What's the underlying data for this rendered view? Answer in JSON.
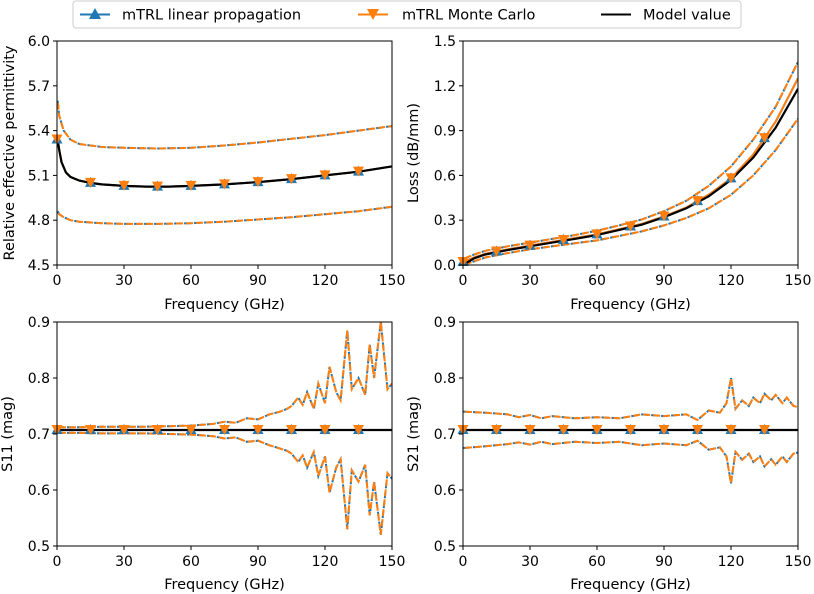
{
  "legend": {
    "position": "top-center",
    "entries": [
      {
        "name": "mTRL linear propagation",
        "color": "#1f77b4",
        "marker": "triangle-up"
      },
      {
        "name": "mTRL Monte Carlo",
        "color": "#ff7f0e",
        "marker": "triangle-down"
      },
      {
        "name": "Model value",
        "color": "#000000",
        "marker": "none"
      }
    ]
  },
  "chart_data": [
    {
      "type": "line",
      "id": "eps",
      "xlabel": "Frequency (GHz)",
      "ylabel": "Relative effective permittivity",
      "xlim": [
        0,
        150
      ],
      "ylim": [
        4.5,
        6.0
      ],
      "xticks": [
        "0",
        "30",
        "60",
        "90",
        "120",
        "150"
      ],
      "yticks": [
        "4.5",
        "4.8",
        "5.1",
        "5.4",
        "5.7",
        "6.0"
      ],
      "model": {
        "x": [
          0.3,
          1,
          2,
          4,
          6,
          10,
          15,
          20,
          30,
          40,
          50,
          60,
          75,
          90,
          105,
          120,
          135,
          150
        ],
        "y": [
          5.34,
          5.27,
          5.19,
          5.12,
          5.09,
          5.065,
          5.05,
          5.04,
          5.03,
          5.025,
          5.025,
          5.03,
          5.04,
          5.055,
          5.075,
          5.1,
          5.125,
          5.16
        ]
      },
      "mean": {
        "x": [
          0.3,
          1,
          2,
          4,
          6,
          10,
          15,
          20,
          30,
          40,
          50,
          60,
          75,
          90,
          105,
          120,
          135,
          150
        ],
        "y": [
          5.34,
          5.27,
          5.19,
          5.12,
          5.09,
          5.065,
          5.05,
          5.04,
          5.03,
          5.025,
          5.025,
          5.03,
          5.04,
          5.055,
          5.075,
          5.1,
          5.125,
          5.16
        ]
      },
      "upper": {
        "x": [
          0.3,
          1,
          3,
          6,
          10,
          20,
          30,
          45,
          60,
          75,
          90,
          105,
          120,
          135,
          150
        ],
        "y": [
          5.6,
          5.5,
          5.4,
          5.34,
          5.31,
          5.29,
          5.285,
          5.28,
          5.285,
          5.3,
          5.32,
          5.345,
          5.37,
          5.4,
          5.43
        ]
      },
      "lower": {
        "x": [
          0.3,
          1,
          3,
          6,
          10,
          20,
          30,
          45,
          60,
          75,
          90,
          105,
          120,
          135,
          150
        ],
        "y": [
          4.86,
          4.84,
          4.82,
          4.8,
          4.79,
          4.78,
          4.775,
          4.775,
          4.78,
          4.79,
          4.805,
          4.82,
          4.84,
          4.86,
          4.89
        ]
      },
      "markers_up_x": [
        0,
        15,
        30,
        45,
        60,
        75,
        90,
        105,
        120,
        135
      ],
      "markers_down_x": [
        0,
        15,
        30,
        45,
        60,
        75,
        90,
        105,
        120,
        135
      ]
    },
    {
      "type": "line",
      "id": "loss",
      "xlabel": "Frequency (GHz)",
      "ylabel": "Loss (dB/mm)",
      "xlim": [
        0,
        150
      ],
      "ylim": [
        0.0,
        1.5
      ],
      "xticks": [
        "0",
        "30",
        "60",
        "90",
        "120",
        "150"
      ],
      "yticks": [
        "0.0",
        "0.3",
        "0.6",
        "0.9",
        "1.2",
        "1.5"
      ],
      "model": {
        "x": [
          0,
          5,
          10,
          20,
          30,
          40,
          50,
          60,
          70,
          80,
          90,
          100,
          110,
          120,
          130,
          140,
          150
        ],
        "y": [
          0.0,
          0.045,
          0.07,
          0.1,
          0.125,
          0.15,
          0.175,
          0.2,
          0.235,
          0.27,
          0.32,
          0.38,
          0.46,
          0.57,
          0.72,
          0.92,
          1.18
        ]
      },
      "mean": {
        "x": [
          0,
          5,
          10,
          20,
          30,
          40,
          50,
          60,
          70,
          80,
          90,
          100,
          110,
          120,
          130,
          140,
          150
        ],
        "y": [
          0.02,
          0.05,
          0.075,
          0.105,
          0.13,
          0.155,
          0.18,
          0.205,
          0.24,
          0.275,
          0.325,
          0.385,
          0.47,
          0.58,
          0.74,
          0.96,
          1.25
        ]
      },
      "upper": {
        "x": [
          0,
          5,
          10,
          20,
          30,
          40,
          50,
          60,
          70,
          80,
          90,
          100,
          110,
          120,
          130,
          140,
          150
        ],
        "y": [
          0.04,
          0.07,
          0.095,
          0.125,
          0.15,
          0.175,
          0.2,
          0.23,
          0.265,
          0.305,
          0.36,
          0.43,
          0.53,
          0.66,
          0.84,
          1.06,
          1.36
        ]
      },
      "lower": {
        "x": [
          0,
          5,
          10,
          20,
          30,
          40,
          50,
          60,
          70,
          80,
          90,
          100,
          110,
          120,
          130,
          140,
          150
        ],
        "y": [
          0.0,
          0.025,
          0.05,
          0.08,
          0.105,
          0.125,
          0.145,
          0.165,
          0.195,
          0.225,
          0.265,
          0.315,
          0.38,
          0.47,
          0.6,
          0.77,
          0.98
        ]
      },
      "markers_up_x": [
        0,
        15,
        30,
        45,
        60,
        75,
        90,
        105,
        120,
        135
      ],
      "markers_down_x": [
        0,
        15,
        30,
        45,
        60,
        75,
        90,
        105,
        120,
        135
      ]
    },
    {
      "type": "line",
      "id": "s11",
      "xlabel": "Frequency (GHz)",
      "ylabel": "S11 (mag)",
      "xlim": [
        0,
        150
      ],
      "ylim": [
        0.5,
        0.9
      ],
      "xticks": [
        "0",
        "30",
        "60",
        "90",
        "120",
        "150"
      ],
      "yticks": [
        "0.5",
        "0.6",
        "0.7",
        "0.8",
        "0.9"
      ],
      "model": {
        "x": [
          0,
          150
        ],
        "y": [
          0.7071,
          0.7071
        ]
      },
      "mean": {
        "x": [
          0,
          150
        ],
        "y": [
          0.7071,
          0.7071
        ]
      },
      "upper": {
        "x": [
          0,
          10,
          20,
          30,
          40,
          50,
          60,
          70,
          75,
          80,
          85,
          90,
          95,
          100,
          103,
          105,
          108,
          110,
          112,
          115,
          117,
          120,
          122,
          125,
          127,
          130,
          132,
          135,
          138,
          140,
          142,
          145,
          148,
          150
        ],
        "y": [
          0.712,
          0.712,
          0.713,
          0.713,
          0.713,
          0.714,
          0.715,
          0.718,
          0.722,
          0.72,
          0.728,
          0.726,
          0.735,
          0.74,
          0.745,
          0.75,
          0.765,
          0.752,
          0.775,
          0.745,
          0.79,
          0.755,
          0.82,
          0.775,
          0.76,
          0.885,
          0.78,
          0.8,
          0.77,
          0.86,
          0.8,
          0.9,
          0.78,
          0.79
        ]
      },
      "lower": {
        "x": [
          0,
          10,
          20,
          30,
          40,
          50,
          60,
          70,
          75,
          80,
          85,
          90,
          95,
          100,
          103,
          105,
          108,
          110,
          112,
          115,
          117,
          120,
          122,
          125,
          127,
          130,
          132,
          135,
          138,
          140,
          142,
          145,
          148,
          150
        ],
        "y": [
          0.702,
          0.702,
          0.701,
          0.701,
          0.701,
          0.7,
          0.699,
          0.696,
          0.692,
          0.694,
          0.686,
          0.688,
          0.68,
          0.674,
          0.67,
          0.665,
          0.65,
          0.662,
          0.64,
          0.668,
          0.625,
          0.66,
          0.595,
          0.64,
          0.655,
          0.53,
          0.635,
          0.615,
          0.645,
          0.555,
          0.615,
          0.52,
          0.63,
          0.62
        ]
      },
      "markers_up_x": [
        0,
        15,
        30,
        45,
        60,
        75,
        90,
        105,
        120,
        135
      ],
      "markers_down_x": [
        0,
        15,
        30,
        45,
        60,
        75,
        90,
        105,
        120,
        135
      ]
    },
    {
      "type": "line",
      "id": "s21",
      "xlabel": "Frequency (GHz)",
      "ylabel": "S21 (mag)",
      "xlim": [
        0,
        150
      ],
      "ylim": [
        0.5,
        0.9
      ],
      "xticks": [
        "0",
        "30",
        "60",
        "90",
        "120",
        "150"
      ],
      "yticks": [
        "0.5",
        "0.6",
        "0.7",
        "0.8",
        "0.9"
      ],
      "model": {
        "x": [
          0,
          150
        ],
        "y": [
          0.7071,
          0.7071
        ]
      },
      "mean": {
        "x": [
          0,
          150
        ],
        "y": [
          0.7071,
          0.7071
        ]
      },
      "upper": {
        "x": [
          0,
          10,
          20,
          25,
          30,
          35,
          40,
          50,
          60,
          70,
          80,
          90,
          100,
          105,
          110,
          115,
          118,
          120,
          122,
          125,
          128,
          130,
          133,
          135,
          138,
          140,
          143,
          145,
          148,
          150
        ],
        "y": [
          0.74,
          0.738,
          0.735,
          0.73,
          0.734,
          0.728,
          0.732,
          0.728,
          0.73,
          0.728,
          0.735,
          0.732,
          0.735,
          0.725,
          0.742,
          0.738,
          0.755,
          0.8,
          0.745,
          0.76,
          0.75,
          0.765,
          0.755,
          0.772,
          0.76,
          0.77,
          0.755,
          0.765,
          0.75,
          0.748
        ]
      },
      "lower": {
        "x": [
          0,
          10,
          20,
          25,
          30,
          35,
          40,
          50,
          60,
          70,
          80,
          90,
          100,
          105,
          110,
          115,
          118,
          120,
          122,
          125,
          128,
          130,
          133,
          135,
          138,
          140,
          143,
          145,
          148,
          150
        ],
        "y": [
          0.675,
          0.678,
          0.682,
          0.685,
          0.681,
          0.686,
          0.682,
          0.686,
          0.684,
          0.686,
          0.68,
          0.683,
          0.68,
          0.688,
          0.672,
          0.676,
          0.66,
          0.612,
          0.668,
          0.654,
          0.665,
          0.65,
          0.66,
          0.642,
          0.655,
          0.645,
          0.66,
          0.65,
          0.665,
          0.667
        ]
      },
      "markers_up_x": [
        0,
        15,
        30,
        45,
        60,
        75,
        90,
        105,
        120,
        135
      ],
      "markers_down_x": [
        0,
        15,
        30,
        45,
        60,
        75,
        90,
        105,
        120,
        135
      ]
    }
  ]
}
